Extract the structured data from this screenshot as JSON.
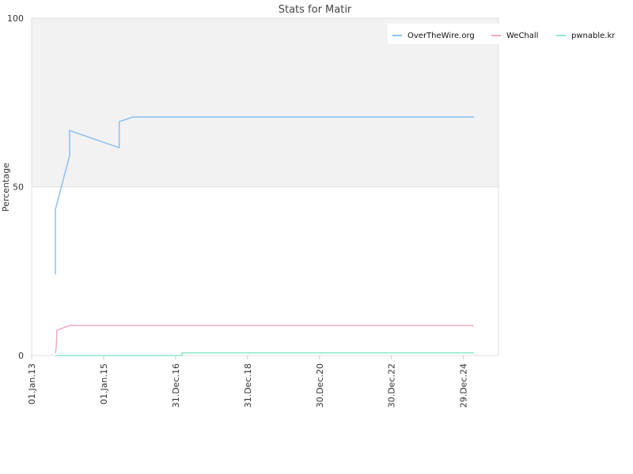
{
  "chart_data": {
    "type": "line",
    "title": "Stats for Matir",
    "ylabel": "Percentage",
    "xlim": [
      "2013-01-01",
      "2025-12-20"
    ],
    "ylim": [
      0,
      100
    ],
    "yticks": [
      0,
      50,
      100
    ],
    "xticks": [
      {
        "value": "2013-01-01",
        "label": "01.Jan.13"
      },
      {
        "value": "2015-01-01",
        "label": "01.Jan.15"
      },
      {
        "value": "2016-12-31",
        "label": "31.Dec.16"
      },
      {
        "value": "2018-12-31",
        "label": "31.Dec.18"
      },
      {
        "value": "2020-12-30",
        "label": "30.Dec.20"
      },
      {
        "value": "2022-12-30",
        "label": "30.Dec.22"
      },
      {
        "value": "2024-12-29",
        "label": "29.Dec.24"
      }
    ],
    "grid": true,
    "legend": "top-right",
    "plot_band": {
      "from": 50,
      "to": 100,
      "color": "#f2f2f2"
    },
    "series": [
      {
        "name": "OverTheWire.org",
        "color": "#8cc0ef",
        "x": [
          "2013-08-30",
          "2013-08-30",
          "2014-01-21",
          "2014-01-21",
          "2015-06-08",
          "2015-06-08",
          "2015-10-24",
          "2025-04-15"
        ],
        "values": [
          24.1,
          43.3,
          59.3,
          66.7,
          61.6,
          69.3,
          70.7,
          70.7
        ]
      },
      {
        "name": "WeChall",
        "color": "#f4a6c6",
        "x": [
          "2013-08-30",
          "2013-09-07",
          "2013-09-15",
          "2014-01-21",
          "2025-04-15"
        ],
        "values": [
          0.7,
          2.3,
          7.5,
          8.9,
          8.9
        ]
      },
      {
        "name": "pwnable.kr",
        "color": "#8fe6cc",
        "x": [
          "2013-08-30",
          "2017-03-06",
          "2017-03-06",
          "2025-04-15"
        ],
        "values": [
          0,
          0,
          0.8,
          0.8
        ]
      }
    ]
  }
}
